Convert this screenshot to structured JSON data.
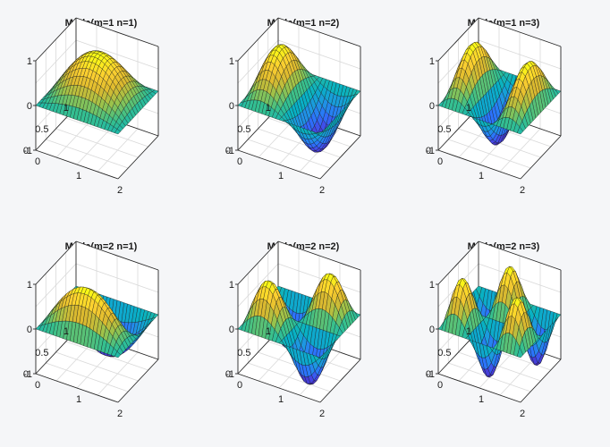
{
  "chart_data": [
    {
      "type": "surface",
      "title": "Mode(m=1  n=1)",
      "m": 1,
      "n": 1,
      "x_range": [
        0,
        2
      ],
      "y_range": [
        0,
        1
      ],
      "zlim": [
        -1,
        1
      ],
      "x_ticks": [
        "0",
        "1",
        "2"
      ],
      "y_ticks": [
        "0",
        "0.5",
        "1"
      ],
      "z_ticks": [
        "-1",
        "0",
        "1"
      ]
    },
    {
      "type": "surface",
      "title": "Mode(m=1  n=2)",
      "m": 1,
      "n": 2,
      "x_range": [
        0,
        2
      ],
      "y_range": [
        0,
        1
      ],
      "zlim": [
        -1,
        1
      ],
      "x_ticks": [
        "0",
        "1",
        "2"
      ],
      "y_ticks": [
        "0",
        "0.5",
        "1"
      ],
      "z_ticks": [
        "-1",
        "0",
        "1"
      ]
    },
    {
      "type": "surface",
      "title": "Mode(m=1  n=3)",
      "m": 1,
      "n": 3,
      "x_range": [
        0,
        2
      ],
      "y_range": [
        0,
        1
      ],
      "zlim": [
        -1,
        1
      ],
      "x_ticks": [
        "0",
        "1",
        "2"
      ],
      "y_ticks": [
        "0",
        "0.5",
        "1"
      ],
      "z_ticks": [
        "-1",
        "0",
        "1"
      ]
    },
    {
      "type": "surface",
      "title": "Mode(m=2  n=1)",
      "m": 2,
      "n": 1,
      "x_range": [
        0,
        2
      ],
      "y_range": [
        0,
        1
      ],
      "zlim": [
        -1,
        1
      ],
      "x_ticks": [
        "0",
        "1",
        "2"
      ],
      "y_ticks": [
        "0",
        "0.5",
        "1"
      ],
      "z_ticks": [
        "-1",
        "0",
        "1"
      ]
    },
    {
      "type": "surface",
      "title": "Mode(m=2  n=2)",
      "m": 2,
      "n": 2,
      "x_range": [
        0,
        2
      ],
      "y_range": [
        0,
        1
      ],
      "zlim": [
        -1,
        1
      ],
      "x_ticks": [
        "0",
        "1",
        "2"
      ],
      "y_ticks": [
        "0",
        "0.5",
        "1"
      ],
      "z_ticks": [
        "-1",
        "0",
        "1"
      ]
    },
    {
      "type": "surface",
      "title": "Mode(m=2  n=3)",
      "m": 2,
      "n": 3,
      "x_range": [
        0,
        2
      ],
      "y_range": [
        0,
        1
      ],
      "zlim": [
        -1,
        1
      ],
      "x_ticks": [
        "0",
        "1",
        "2"
      ],
      "y_ticks": [
        "0",
        "0.5",
        "1"
      ],
      "z_ticks": [
        "-1",
        "0",
        "1"
      ]
    }
  ],
  "colormap": [
    "#3e26a8",
    "#4743e3",
    "#2c72fc",
    "#1d98e0",
    "#07b1c4",
    "#37c08d",
    "#95c34e",
    "#dcb92f",
    "#fcd030",
    "#f9fb15"
  ],
  "grid_lines": true
}
